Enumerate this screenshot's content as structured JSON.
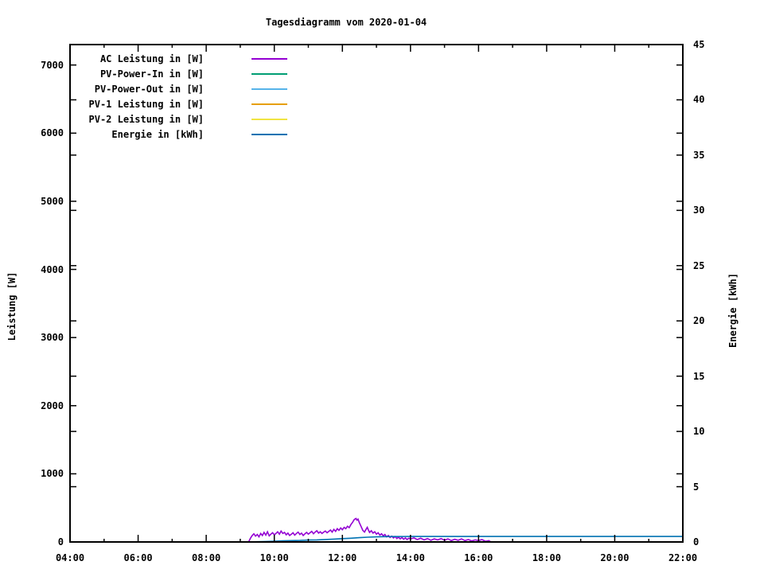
{
  "title": "Tagesdiagramm vom 2020-01-04",
  "axes": {
    "x": {
      "min": 4,
      "max": 22,
      "major_ticks": [
        4,
        6,
        8,
        10,
        12,
        14,
        16,
        18,
        20,
        22
      ],
      "minor_ticks": [
        5,
        7,
        9,
        11,
        13,
        15,
        17,
        19,
        21
      ],
      "tick_labels": [
        "04:00",
        "06:00",
        "08:00",
        "10:00",
        "12:00",
        "14:00",
        "16:00",
        "18:00",
        "20:00",
        "22:00"
      ]
    },
    "y_left": {
      "label": "Leistung [W]",
      "min": 0,
      "max": 7300,
      "ticks": [
        0,
        1000,
        2000,
        3000,
        4000,
        5000,
        6000,
        7000
      ],
      "tick_labels": [
        "0",
        "1000",
        "2000",
        "3000",
        "4000",
        "5000",
        "6000",
        "7000"
      ]
    },
    "y_right": {
      "label": "Energie [kWh]",
      "min": 0,
      "max": 45,
      "ticks": [
        0,
        5,
        10,
        15,
        20,
        25,
        30,
        35,
        40,
        45
      ],
      "tick_labels": [
        "0",
        "5",
        "10",
        "15",
        "20",
        "25",
        "30",
        "35",
        "40",
        "45"
      ]
    }
  },
  "legend": [
    {
      "label": "AC Leistung in [W]",
      "color": "#9400d3"
    },
    {
      "label": "PV-Power-In in [W]",
      "color": "#009e73"
    },
    {
      "label": "PV-Power-Out in [W]",
      "color": "#56b4e9"
    },
    {
      "label": "PV-1 Leistung in [W]",
      "color": "#e69f00"
    },
    {
      "label": "PV-2 Leistung in [W]",
      "color": "#f0e442"
    },
    {
      "label": "Energie in [kWh]",
      "color": "#0072b2"
    }
  ],
  "chart_data": {
    "type": "line",
    "title": "Tagesdiagramm vom 2020-01-04",
    "xlabel": "",
    "ylabel": "Leistung [W]",
    "y2label": "Energie [kWh]",
    "x_unit": "hour_of_day",
    "xlim": [
      4,
      22
    ],
    "ylim": [
      0,
      7300
    ],
    "y2lim": [
      0,
      45
    ],
    "grid": false,
    "legend_position": "top-left-inside",
    "series": [
      {
        "name": "PV-2 Leistung in [W]",
        "axis": "y",
        "color": "#f0e442",
        "points": [
          [
            9.25,
            0
          ],
          [
            16.35,
            0
          ]
        ]
      },
      {
        "name": "PV-1 Leistung in [W]",
        "axis": "y",
        "color": "#e69f00",
        "points": [
          [
            9.25,
            0
          ],
          [
            16.35,
            0
          ]
        ]
      },
      {
        "name": "PV-Power-Out in [W]",
        "axis": "y",
        "color": "#56b4e9",
        "points": [
          [
            9.25,
            0
          ],
          [
            16.35,
            0
          ]
        ]
      },
      {
        "name": "PV-Power-In in [W]",
        "axis": "y",
        "color": "#009e73",
        "points": [
          [
            9.25,
            0
          ],
          [
            16.35,
            0
          ]
        ]
      },
      {
        "name": "AC Leistung in [W]",
        "axis": "y",
        "color": "#9400d3",
        "points": [
          [
            9.25,
            5
          ],
          [
            9.3,
            55
          ],
          [
            9.35,
            95
          ],
          [
            9.4,
            120
          ],
          [
            9.45,
            85
          ],
          [
            9.5,
            110
          ],
          [
            9.55,
            75
          ],
          [
            9.6,
            125
          ],
          [
            9.65,
            95
          ],
          [
            9.7,
            140
          ],
          [
            9.75,
            100
          ],
          [
            9.8,
            150
          ],
          [
            9.85,
            90
          ],
          [
            9.9,
            115
          ],
          [
            9.95,
            135
          ],
          [
            10.0,
            105
          ],
          [
            10.05,
            125
          ],
          [
            10.1,
            150
          ],
          [
            10.15,
            115
          ],
          [
            10.2,
            160
          ],
          [
            10.25,
            125
          ],
          [
            10.3,
            140
          ],
          [
            10.35,
            105
          ],
          [
            10.4,
            130
          ],
          [
            10.45,
            95
          ],
          [
            10.5,
            115
          ],
          [
            10.55,
            135
          ],
          [
            10.6,
            100
          ],
          [
            10.65,
            125
          ],
          [
            10.7,
            145
          ],
          [
            10.75,
            110
          ],
          [
            10.8,
            130
          ],
          [
            10.85,
            95
          ],
          [
            10.9,
            120
          ],
          [
            10.95,
            140
          ],
          [
            11.0,
            115
          ],
          [
            11.05,
            135
          ],
          [
            11.1,
            155
          ],
          [
            11.15,
            120
          ],
          [
            11.2,
            145
          ],
          [
            11.25,
            165
          ],
          [
            11.3,
            130
          ],
          [
            11.35,
            150
          ],
          [
            11.4,
            125
          ],
          [
            11.45,
            145
          ],
          [
            11.5,
            160
          ],
          [
            11.55,
            135
          ],
          [
            11.6,
            155
          ],
          [
            11.65,
            175
          ],
          [
            11.7,
            145
          ],
          [
            11.75,
            185
          ],
          [
            11.8,
            155
          ],
          [
            11.85,
            195
          ],
          [
            11.9,
            170
          ],
          [
            11.95,
            205
          ],
          [
            12.0,
            180
          ],
          [
            12.05,
            215
          ],
          [
            12.1,
            195
          ],
          [
            12.15,
            230
          ],
          [
            12.2,
            210
          ],
          [
            12.25,
            255
          ],
          [
            12.3,
            290
          ],
          [
            12.35,
            330
          ],
          [
            12.4,
            345
          ],
          [
            12.43,
            320
          ],
          [
            12.46,
            335
          ],
          [
            12.5,
            280
          ],
          [
            12.55,
            225
          ],
          [
            12.6,
            170
          ],
          [
            12.65,
            145
          ],
          [
            12.7,
            190
          ],
          [
            12.73,
            215
          ],
          [
            12.76,
            180
          ],
          [
            12.8,
            140
          ],
          [
            12.85,
            165
          ],
          [
            12.9,
            130
          ],
          [
            12.95,
            150
          ],
          [
            13.0,
            115
          ],
          [
            13.05,
            135
          ],
          [
            13.1,
            100
          ],
          [
            13.15,
            120
          ],
          [
            13.2,
            90
          ],
          [
            13.25,
            110
          ],
          [
            13.3,
            75
          ],
          [
            13.35,
            95
          ],
          [
            13.4,
            65
          ],
          [
            13.45,
            85
          ],
          [
            13.5,
            60
          ],
          [
            13.55,
            80
          ],
          [
            13.6,
            50
          ],
          [
            13.65,
            70
          ],
          [
            13.7,
            45
          ],
          [
            13.75,
            65
          ],
          [
            13.8,
            40
          ],
          [
            13.85,
            60
          ],
          [
            13.9,
            35
          ],
          [
            13.95,
            55
          ],
          [
            14.0,
            45
          ],
          [
            14.1,
            60
          ],
          [
            14.2,
            35
          ],
          [
            14.3,
            55
          ],
          [
            14.4,
            30
          ],
          [
            14.5,
            50
          ],
          [
            14.6,
            25
          ],
          [
            14.7,
            45
          ],
          [
            14.8,
            30
          ],
          [
            14.9,
            50
          ],
          [
            15.0,
            25
          ],
          [
            15.1,
            45
          ],
          [
            15.2,
            20
          ],
          [
            15.3,
            40
          ],
          [
            15.4,
            25
          ],
          [
            15.5,
            45
          ],
          [
            15.6,
            20
          ],
          [
            15.7,
            35
          ],
          [
            15.8,
            15
          ],
          [
            15.9,
            30
          ],
          [
            16.0,
            20
          ],
          [
            16.1,
            35
          ],
          [
            16.2,
            10
          ],
          [
            16.3,
            20
          ],
          [
            16.35,
            5
          ]
        ]
      },
      {
        "name": "Energie in [kWh]",
        "axis": "y2",
        "color": "#0072b2",
        "points": [
          [
            9.25,
            0
          ],
          [
            9.5,
            0.02
          ],
          [
            9.75,
            0.04
          ],
          [
            10.0,
            0.07
          ],
          [
            10.25,
            0.1
          ],
          [
            10.5,
            0.12
          ],
          [
            10.75,
            0.14
          ],
          [
            11.0,
            0.17
          ],
          [
            11.25,
            0.19
          ],
          [
            11.5,
            0.22
          ],
          [
            11.75,
            0.26
          ],
          [
            12.0,
            0.3
          ],
          [
            12.25,
            0.34
          ],
          [
            12.5,
            0.39
          ],
          [
            12.75,
            0.43
          ],
          [
            13.0,
            0.46
          ],
          [
            13.25,
            0.48
          ],
          [
            13.5,
            0.49
          ],
          [
            14.0,
            0.5
          ],
          [
            16.0,
            0.5
          ],
          [
            18.0,
            0.5
          ],
          [
            20.0,
            0.5
          ],
          [
            22.0,
            0.5
          ]
        ]
      }
    ]
  }
}
